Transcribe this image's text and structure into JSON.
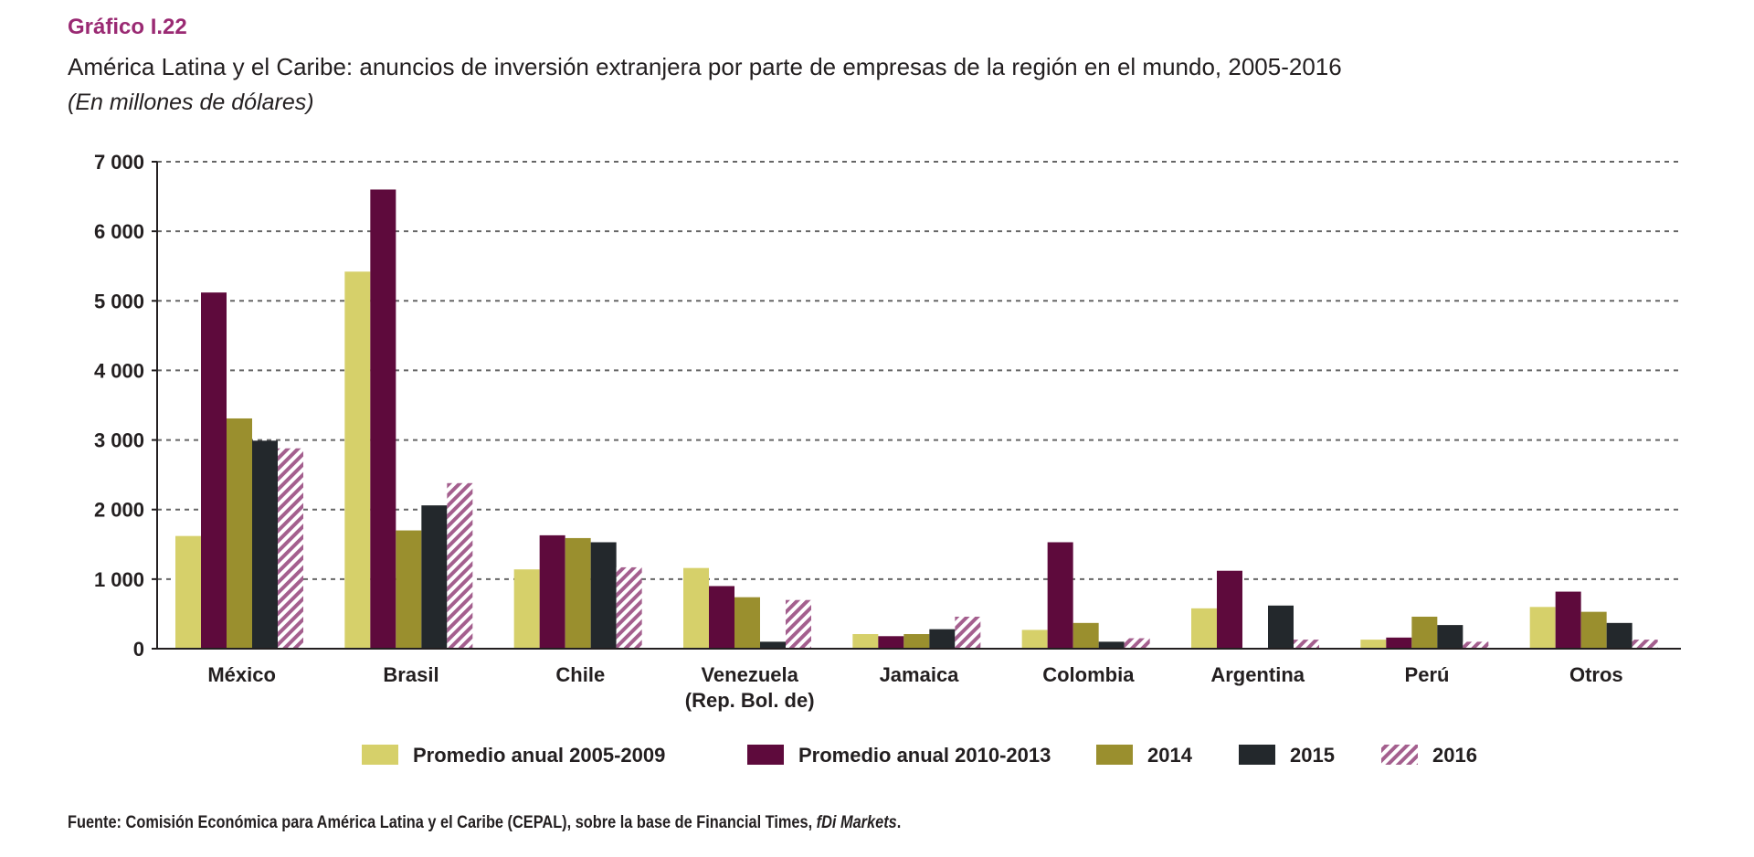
{
  "header": {
    "label": "Gráfico I.22",
    "title": "América Latina y el Caribe: anuncios de inversión extranjera por parte de empresas de la región en el mundo, 2005-2016",
    "subtitle": "(En millones de dólares)"
  },
  "source": {
    "key": "Fuente",
    "text": ": Comisión Económica para América Latina y el Caribe (CEPAL), sobre la base de Financial Times, ",
    "italic": "fDi Markets",
    "end": "."
  },
  "colors": {
    "series": [
      "#d6d06a",
      "#5e0a3c",
      "#9a8f2e",
      "#23282c",
      "#a45f8e"
    ],
    "grid": "#666666",
    "axis": "#231f20"
  },
  "chart_data": {
    "type": "bar",
    "categories": [
      [
        "México"
      ],
      [
        "Brasil"
      ],
      [
        "Chile"
      ],
      [
        "Venezuela",
        "(Rep. Bol. de)"
      ],
      [
        "Jamaica"
      ],
      [
        "Colombia"
      ],
      [
        "Argentina"
      ],
      [
        "Perú"
      ],
      [
        "Otros"
      ]
    ],
    "series": [
      {
        "name": "Promedio anual 2005-2009",
        "pattern": "solid",
        "values": [
          1620,
          5420,
          1140,
          1160,
          210,
          270,
          580,
          130,
          600
        ]
      },
      {
        "name": "Promedio anual 2010-2013",
        "pattern": "solid",
        "values": [
          5120,
          6600,
          1630,
          900,
          180,
          1530,
          1120,
          160,
          820
        ]
      },
      {
        "name": "2014",
        "pattern": "solid",
        "values": [
          3310,
          1700,
          1590,
          740,
          210,
          370,
          10,
          460,
          530
        ]
      },
      {
        "name": "2015",
        "pattern": "solid",
        "values": [
          2990,
          2060,
          1530,
          100,
          280,
          100,
          620,
          340,
          370
        ]
      },
      {
        "name": "2016",
        "pattern": "hatched",
        "values": [
          2880,
          2380,
          1170,
          700,
          460,
          150,
          130,
          100,
          130
        ]
      }
    ],
    "yticks": [
      0,
      1000,
      2000,
      3000,
      4000,
      5000,
      6000,
      7000
    ],
    "ytick_labels": [
      "0",
      "1 000",
      "2 000",
      "3 000",
      "4 000",
      "5 000",
      "6 000",
      "7 000"
    ],
    "ylim": [
      0,
      7000
    ],
    "grid": true,
    "legend": "bottom"
  }
}
